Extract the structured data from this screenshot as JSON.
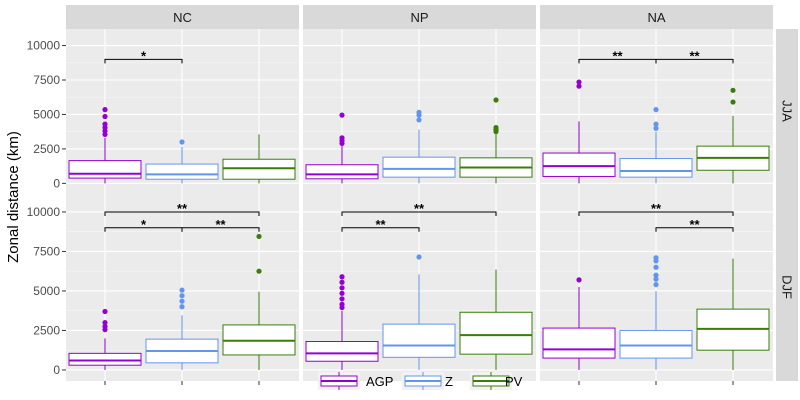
{
  "chart_data": {
    "type": "boxplot",
    "ylabel": "Zonal distance (km)",
    "ylim": [
      -700,
      11200
    ],
    "yticks": [
      0,
      2500,
      5000,
      7500,
      10000
    ],
    "ytick_labels": [
      "0",
      "2500",
      "5000",
      "7500",
      "10000"
    ],
    "columns": [
      "NC",
      "NP",
      "NA"
    ],
    "rows": [
      "JJA",
      "DJF"
    ],
    "categories": [
      "AGP",
      "Z",
      "PV"
    ],
    "colors": {
      "AGP": "#9400d3",
      "Z": "#6495ed",
      "PV": "#3a7d0a"
    },
    "legend": {
      "position": "bottom",
      "entries": [
        "AGP",
        "Z",
        "PV"
      ]
    },
    "panels": [
      {
        "col": "NC",
        "row": "JJA",
        "boxes": [
          {
            "cat": "AGP",
            "min": 0,
            "q1": 380,
            "median": 700,
            "q3": 1650,
            "max": 3300,
            "outliers": [
              3550,
              3800,
              4050,
              4300,
              4850,
              5350
            ]
          },
          {
            "cat": "Z",
            "min": 0,
            "q1": 300,
            "median": 650,
            "q3": 1400,
            "max": 2650,
            "outliers": [
              3000
            ]
          },
          {
            "cat": "PV",
            "min": 0,
            "q1": 300,
            "median": 1100,
            "q3": 1750,
            "max": 3550,
            "outliers": []
          }
        ],
        "brackets": [
          {
            "from": "AGP",
            "to": "Z",
            "y": 9000,
            "label": "*"
          }
        ]
      },
      {
        "col": "NP",
        "row": "JJA",
        "boxes": [
          {
            "cat": "AGP",
            "min": 0,
            "q1": 330,
            "median": 650,
            "q3": 1350,
            "max": 2700,
            "outliers": [
              2900,
              3100,
              3300,
              4950
            ]
          },
          {
            "cat": "Z",
            "min": 0,
            "q1": 450,
            "median": 1050,
            "q3": 1900,
            "max": 3900,
            "outliers": [
              4600,
              4950,
              5150
            ]
          },
          {
            "cat": "PV",
            "min": 0,
            "q1": 450,
            "median": 1150,
            "q3": 1850,
            "max": 3550,
            "outliers": [
              3750,
              3900,
              4050,
              6050
            ]
          }
        ],
        "brackets": []
      },
      {
        "col": "NA",
        "row": "JJA",
        "boxes": [
          {
            "cat": "AGP",
            "min": 0,
            "q1": 500,
            "median": 1250,
            "q3": 2200,
            "max": 4500,
            "outliers": [
              7050,
              7350
            ]
          },
          {
            "cat": "Z",
            "min": 0,
            "q1": 450,
            "median": 900,
            "q3": 1800,
            "max": 3750,
            "outliers": [
              4000,
              4300,
              5350
            ]
          },
          {
            "cat": "PV",
            "min": 0,
            "q1": 950,
            "median": 1850,
            "q3": 2700,
            "max": 4900,
            "outliers": [
              5900,
              6750
            ]
          }
        ],
        "brackets": [
          {
            "from": "AGP",
            "to": "Z",
            "y": 9000,
            "label": "**"
          },
          {
            "from": "Z",
            "to": "PV",
            "y": 9000,
            "label": "**"
          }
        ]
      },
      {
        "col": "NC",
        "row": "DJF",
        "boxes": [
          {
            "cat": "AGP",
            "min": 0,
            "q1": 300,
            "median": 600,
            "q3": 1050,
            "max": 2000,
            "outliers": [
              2550,
              2750,
              3000,
              3700
            ]
          },
          {
            "cat": "Z",
            "min": 0,
            "q1": 450,
            "median": 1200,
            "q3": 1950,
            "max": 3450,
            "outliers": [
              4000,
              4350,
              4700,
              5050
            ]
          },
          {
            "cat": "PV",
            "min": 0,
            "q1": 950,
            "median": 1850,
            "q3": 2850,
            "max": 4950,
            "outliers": [
              6250,
              8450
            ]
          }
        ],
        "brackets": [
          {
            "from": "AGP",
            "to": "Z",
            "y": 9000,
            "label": "*"
          },
          {
            "from": "Z",
            "to": "PV",
            "y": 9000,
            "label": "**"
          },
          {
            "from": "AGP",
            "to": "PV",
            "y": 10000,
            "label": "**"
          }
        ]
      },
      {
        "col": "NP",
        "row": "DJF",
        "boxes": [
          {
            "cat": "AGP",
            "min": 0,
            "q1": 550,
            "median": 1050,
            "q3": 1800,
            "max": 3750,
            "outliers": [
              3950,
              4150,
              4500,
              4850,
              5200,
              5550,
              5900
            ]
          },
          {
            "cat": "Z",
            "min": 0,
            "q1": 800,
            "median": 1550,
            "q3": 2900,
            "max": 6050,
            "outliers": [
              7150
            ]
          },
          {
            "cat": "PV",
            "min": 0,
            "q1": 1000,
            "median": 2200,
            "q3": 3650,
            "max": 6350,
            "outliers": []
          }
        ],
        "brackets": [
          {
            "from": "AGP",
            "to": "Z",
            "y": 9000,
            "label": "**"
          },
          {
            "from": "AGP",
            "to": "PV",
            "y": 10000,
            "label": "**"
          }
        ]
      },
      {
        "col": "NA",
        "row": "DJF",
        "boxes": [
          {
            "cat": "AGP",
            "min": 0,
            "q1": 750,
            "median": 1300,
            "q3": 2650,
            "max": 5250,
            "outliers": [
              5700
            ]
          },
          {
            "cat": "Z",
            "min": 0,
            "q1": 750,
            "median": 1550,
            "q3": 2500,
            "max": 5000,
            "outliers": [
              5400,
              5750,
              6000,
              6500,
              6900,
              7100
            ]
          },
          {
            "cat": "PV",
            "min": 0,
            "q1": 1250,
            "median": 2600,
            "q3": 3850,
            "max": 7050,
            "outliers": []
          }
        ],
        "brackets": [
          {
            "from": "AGP",
            "to": "PV",
            "y": 10000,
            "label": "**"
          },
          {
            "from": "Z",
            "to": "PV",
            "y": 9000,
            "label": "**"
          }
        ]
      }
    ]
  }
}
